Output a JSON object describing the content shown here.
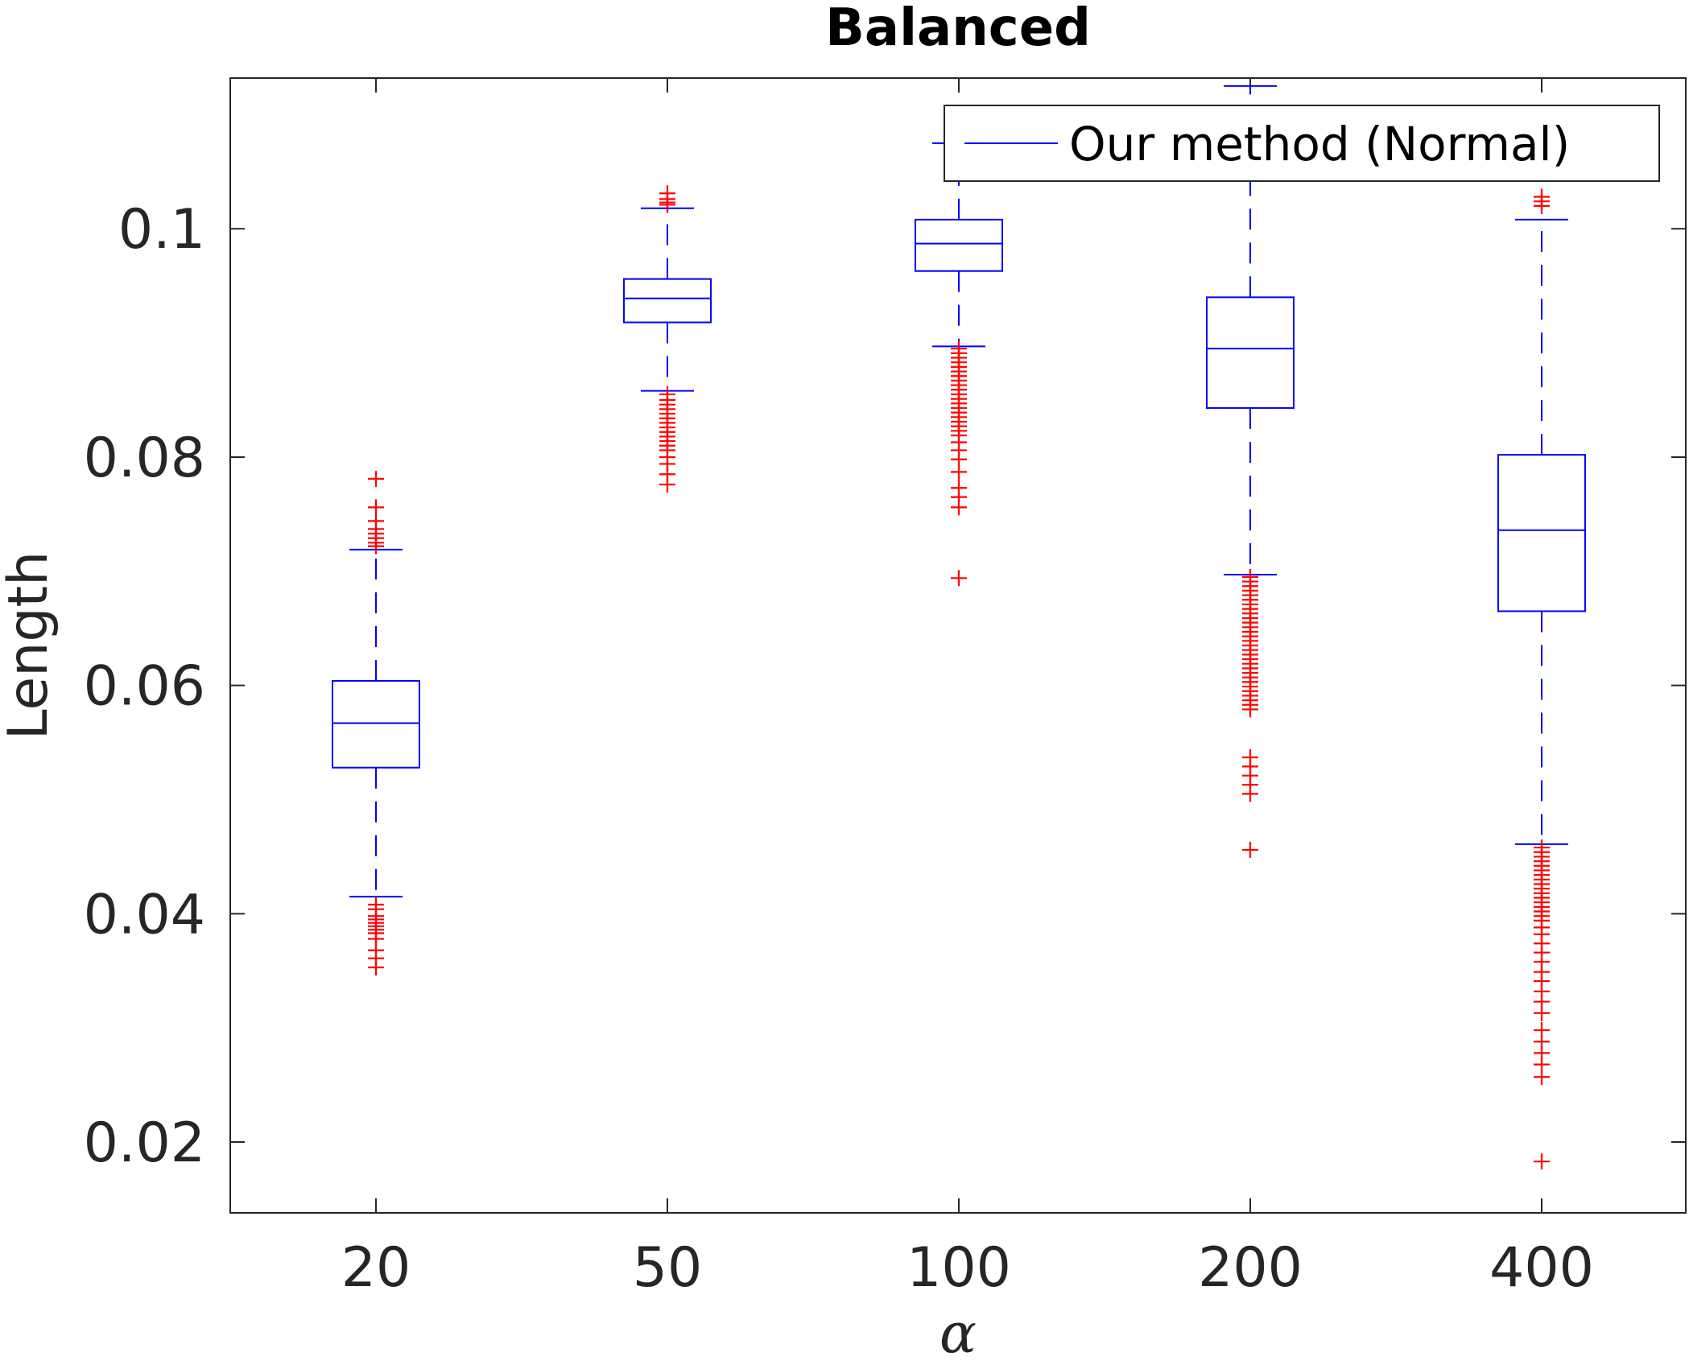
{
  "chart_data": {
    "type": "box",
    "title": "Balanced",
    "xlabel": "α",
    "ylabel": "Length",
    "categories": [
      "20",
      "50",
      "100",
      "200",
      "400"
    ],
    "ylim": [
      0.0138,
      0.1132
    ],
    "yticks": [
      0.02,
      0.04,
      0.06,
      0.08,
      0.1
    ],
    "ytick_labels": [
      "0.02",
      "0.04",
      "0.06",
      "0.08",
      "0.1"
    ],
    "grid": false,
    "legend": {
      "position": "top-right",
      "entries": [
        "Our method (Normal)"
      ]
    },
    "colors": {
      "box": "#0000ff",
      "outlier": "#ff0000",
      "axis": "#262626"
    },
    "series": [
      {
        "name": "Our method (Normal)",
        "boxes": [
          {
            "category": "20",
            "whisker_low": 0.0415,
            "q1": 0.0528,
            "median": 0.0567,
            "q3": 0.0604,
            "whisker_high": 0.0719,
            "outliers": [
              0.0781,
              0.0756,
              0.0744,
              0.0737,
              0.0733,
              0.0729,
              0.0725,
              0.0722,
              0.0408,
              0.0404,
              0.0398,
              0.0395,
              0.0392,
              0.0389,
              0.0386,
              0.0383,
              0.0378,
              0.0368,
              0.0361,
              0.0353
            ]
          },
          {
            "category": "50",
            "whisker_low": 0.0858,
            "q1": 0.0918,
            "median": 0.0939,
            "q3": 0.0956,
            "whisker_high": 0.1018,
            "outliers": [
              0.1031,
              0.1026,
              0.1023,
              0.1021,
              0.0855,
              0.085,
              0.0846,
              0.0842,
              0.0838,
              0.0834,
              0.083,
              0.0826,
              0.0822,
              0.0818,
              0.0814,
              0.081,
              0.0806,
              0.08,
              0.0794,
              0.0785,
              0.0776
            ]
          },
          {
            "category": "100",
            "whisker_low": 0.0897,
            "q1": 0.0963,
            "median": 0.0987,
            "q3": 0.1008,
            "whisker_high": 0.1075,
            "outliers": [
              0.0895,
              0.0891,
              0.0887,
              0.0883,
              0.0879,
              0.0875,
              0.0871,
              0.0867,
              0.0863,
              0.0859,
              0.0855,
              0.0851,
              0.0847,
              0.0843,
              0.0839,
              0.0835,
              0.0831,
              0.0827,
              0.0823,
              0.0819,
              0.0813,
              0.0806,
              0.0798,
              0.0787,
              0.0773,
              0.0765,
              0.0756,
              0.0694
            ]
          },
          {
            "category": "200",
            "whisker_low": 0.0697,
            "q1": 0.0843,
            "median": 0.0895,
            "q3": 0.094,
            "whisker_high": 0.1125,
            "outliers": [
              0.0695,
              0.0691,
              0.0687,
              0.0683,
              0.0679,
              0.0675,
              0.0671,
              0.0667,
              0.0663,
              0.0659,
              0.0655,
              0.0651,
              0.0647,
              0.0643,
              0.0639,
              0.0635,
              0.0631,
              0.0627,
              0.0623,
              0.0619,
              0.0615,
              0.0611,
              0.0607,
              0.0603,
              0.0599,
              0.0595,
              0.0591,
              0.0587,
              0.0583,
              0.0579,
              0.0537,
              0.0529,
              0.0521,
              0.0513,
              0.0505,
              0.0456
            ]
          },
          {
            "category": "400",
            "whisker_low": 0.0461,
            "q1": 0.0665,
            "median": 0.0736,
            "q3": 0.0802,
            "whisker_high": 0.1008,
            "outliers": [
              0.1028,
              0.1024,
              0.102,
              0.0458,
              0.0454,
              0.045,
              0.0446,
              0.0442,
              0.0438,
              0.0434,
              0.043,
              0.0426,
              0.0422,
              0.0418,
              0.0414,
              0.041,
              0.0406,
              0.0402,
              0.0398,
              0.0394,
              0.0388,
              0.0382,
              0.0374,
              0.0366,
              0.0358,
              0.0349,
              0.0341,
              0.0332,
              0.0323,
              0.0313,
              0.0298,
              0.0288,
              0.0278,
              0.0268,
              0.0257,
              0.0183
            ]
          }
        ]
      }
    ]
  }
}
